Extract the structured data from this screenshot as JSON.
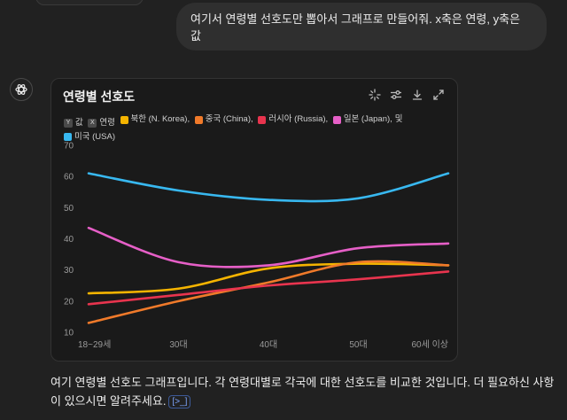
{
  "user_message": "여기서 연령별 선호도만 뽑아서 그래프로 만들어줘. x축은 연령, y축은 값",
  "chart_card": {
    "title": "연령별 선호도",
    "legend_prefix": {
      "y_key": "Y",
      "y_label": "값",
      "x_key": "X",
      "x_label": "연령"
    },
    "legend_suffix": "및"
  },
  "chart_data": {
    "type": "line",
    "title": "연령별 선호도",
    "xlabel": "연령",
    "ylabel": "값",
    "categories": [
      "18~29세",
      "30대",
      "40대",
      "50대",
      "60세 이상"
    ],
    "ylim": [
      10,
      70
    ],
    "yticks": [
      10,
      20,
      30,
      40,
      50,
      60,
      70
    ],
    "grid": false,
    "series": [
      {
        "name": "북한 (N. Korea),",
        "color": "#f5b400",
        "values": [
          22.5,
          24,
          30.5,
          32,
          31.5
        ]
      },
      {
        "name": "중국 (China),",
        "color": "#f07a2a",
        "values": [
          13,
          20,
          26,
          32.5,
          31.5
        ]
      },
      {
        "name": "러시아 (Russia),",
        "color": "#e8344e",
        "values": [
          19,
          22,
          25,
          27,
          29.5
        ]
      },
      {
        "name": "일본 (Japan),",
        "color": "#e65fc7",
        "values": [
          43.5,
          32.5,
          31.5,
          37,
          38.5
        ]
      },
      {
        "name": "미국 (USA)",
        "color": "#38b8f0",
        "values": [
          61,
          55.5,
          52.5,
          53,
          61
        ]
      }
    ]
  },
  "assistant_reply": {
    "text": "여기 연령별 선호도 그래프입니다. 각 연령대별로 각국에 대한 선호도를 비교한 것입니다. 더 필요하신 사항이 있으시면 알려주세요.",
    "citation_label": "[>_]"
  }
}
